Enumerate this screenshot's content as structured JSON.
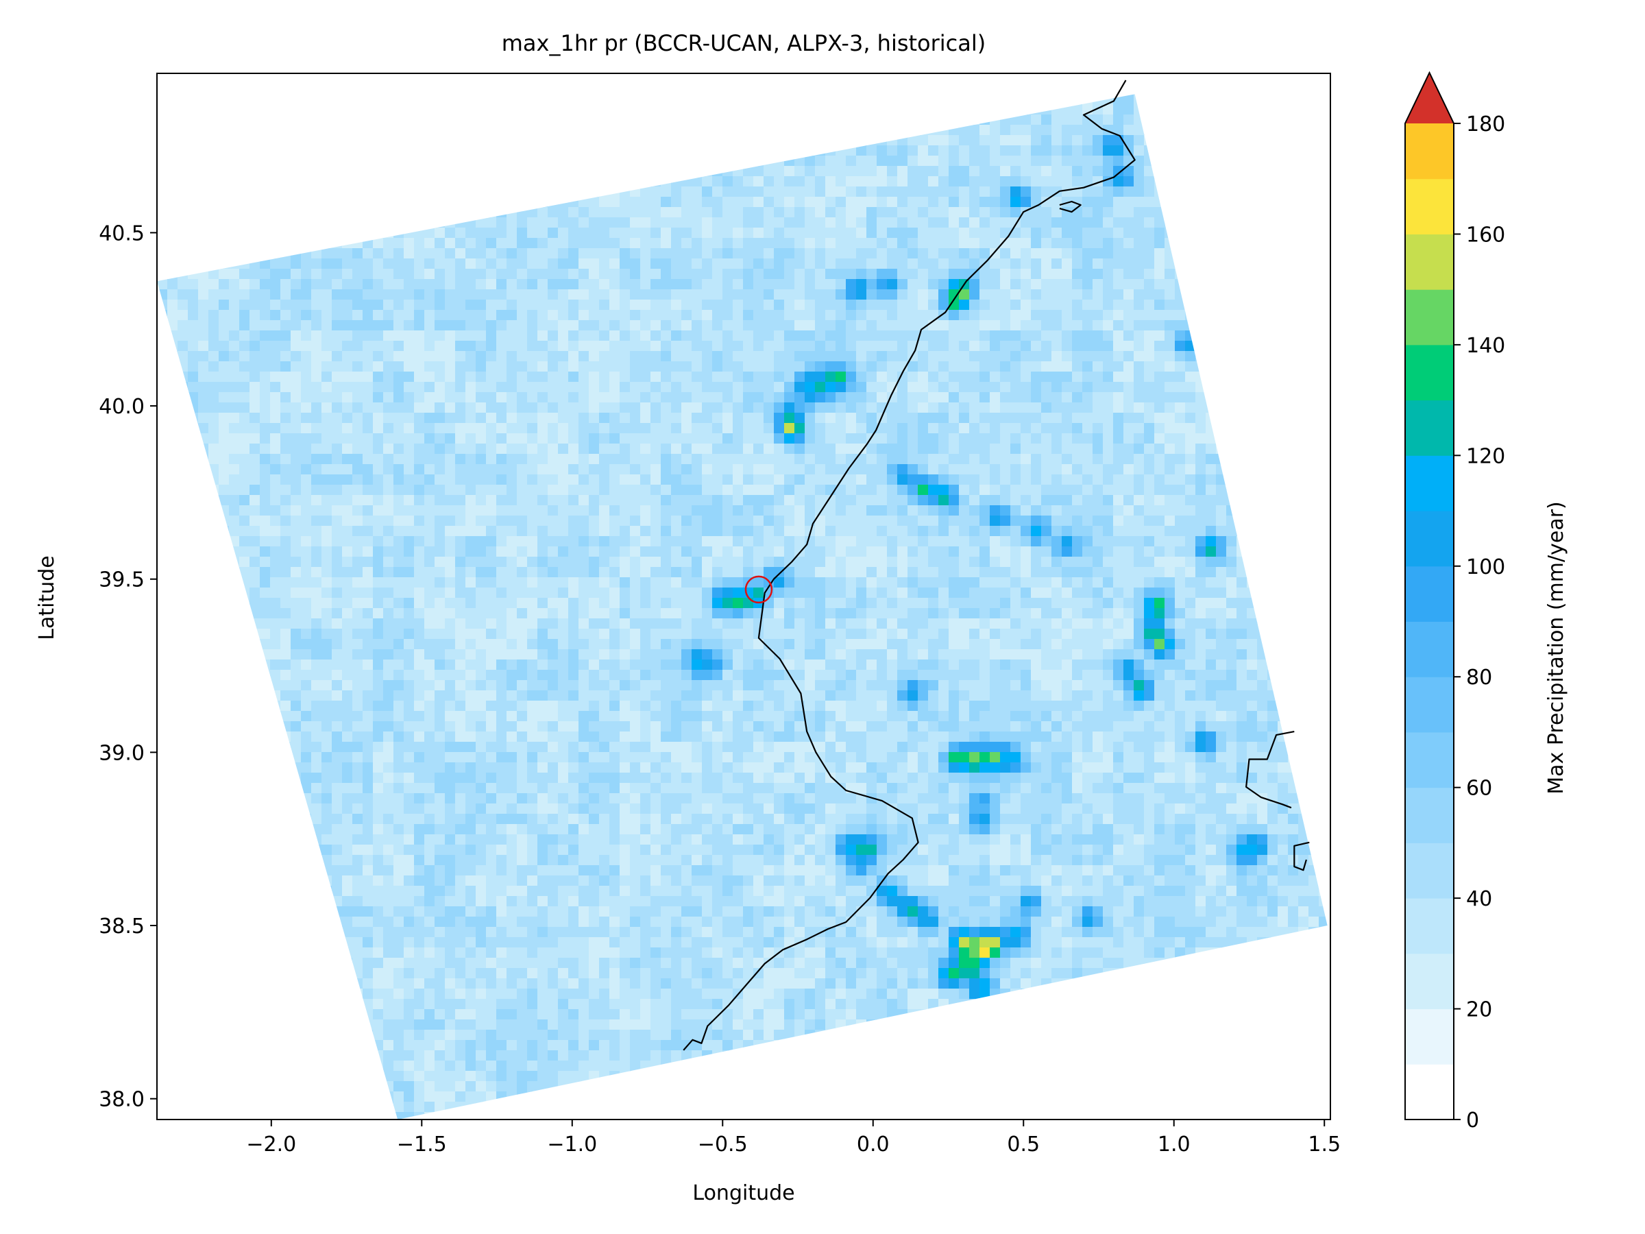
{
  "chart_data": {
    "type": "heatmap",
    "title": "max_1hr pr (BCCR-UCAN, ALPX-3, historical)",
    "xlabel": "Longitude",
    "ylabel": "Latitude",
    "xlim": [
      -2.38,
      1.52
    ],
    "ylim": [
      37.94,
      40.96
    ],
    "x_ticks": [
      -2.0,
      -1.5,
      -1.0,
      -0.5,
      0.0,
      0.5,
      1.0,
      1.5
    ],
    "x_tick_labels": [
      "−2.0",
      "−1.5",
      "−1.0",
      "−0.5",
      "0.0",
      "0.5",
      "1.0",
      "1.5"
    ],
    "y_ticks": [
      38.0,
      38.5,
      39.0,
      39.5,
      40.0,
      40.5
    ],
    "y_tick_labels": [
      "38.0",
      "38.5",
      "39.0",
      "39.5",
      "40.0",
      "40.5"
    ],
    "grid": false,
    "domain_corners_lonlat": [
      [
        -2.38,
        40.36
      ],
      [
        0.87,
        40.9
      ],
      [
        1.51,
        38.5
      ],
      [
        -1.58,
        37.94
      ]
    ],
    "background_value_range": [
      20,
      60
    ],
    "hotspots": [
      {
        "lon": 0.36,
        "lat": 38.43,
        "value": 180
      },
      {
        "lon": 0.3,
        "lat": 38.45,
        "value": 160
      },
      {
        "lon": 0.4,
        "lat": 38.45,
        "value": 158
      },
      {
        "lon": 0.32,
        "lat": 38.38,
        "value": 150
      },
      {
        "lon": 0.26,
        "lat": 38.36,
        "value": 140
      },
      {
        "lon": 0.36,
        "lat": 38.32,
        "value": 132
      },
      {
        "lon": 0.48,
        "lat": 38.47,
        "value": 120
      },
      {
        "lon": 0.05,
        "lat": 38.59,
        "value": 120
      },
      {
        "lon": 0.12,
        "lat": 38.55,
        "value": 135
      },
      {
        "lon": 0.18,
        "lat": 38.52,
        "value": 118
      },
      {
        "lon": 0.52,
        "lat": 38.56,
        "value": 112
      },
      {
        "lon": 0.72,
        "lat": 38.52,
        "value": 108
      },
      {
        "lon": -0.08,
        "lat": 38.73,
        "value": 125
      },
      {
        "lon": -0.02,
        "lat": 38.72,
        "value": 132
      },
      {
        "lon": -0.05,
        "lat": 38.68,
        "value": 110
      },
      {
        "lon": 0.28,
        "lat": 38.98,
        "value": 138
      },
      {
        "lon": 0.34,
        "lat": 38.98,
        "value": 150
      },
      {
        "lon": 0.4,
        "lat": 38.98,
        "value": 144
      },
      {
        "lon": 0.46,
        "lat": 38.98,
        "value": 118
      },
      {
        "lon": 0.36,
        "lat": 38.86,
        "value": 100
      },
      {
        "lon": 0.36,
        "lat": 38.8,
        "value": 110
      },
      {
        "lon": 0.94,
        "lat": 39.42,
        "value": 152
      },
      {
        "lon": 0.96,
        "lat": 39.31,
        "value": 145
      },
      {
        "lon": 0.93,
        "lat": 39.35,
        "value": 132
      },
      {
        "lon": 0.89,
        "lat": 39.18,
        "value": 135
      },
      {
        "lon": 0.85,
        "lat": 39.24,
        "value": 112
      },
      {
        "lon": 1.12,
        "lat": 39.59,
        "value": 130
      },
      {
        "lon": 1.1,
        "lat": 39.03,
        "value": 122
      },
      {
        "lon": 1.27,
        "lat": 38.73,
        "value": 130
      },
      {
        "lon": 1.23,
        "lat": 38.71,
        "value": 114
      },
      {
        "lon": -0.5,
        "lat": 39.44,
        "value": 128
      },
      {
        "lon": -0.44,
        "lat": 39.44,
        "value": 140
      },
      {
        "lon": -0.39,
        "lat": 39.45,
        "value": 130
      },
      {
        "lon": -0.32,
        "lat": 39.5,
        "value": 108
      },
      {
        "lon": -0.58,
        "lat": 39.26,
        "value": 120
      },
      {
        "lon": -0.54,
        "lat": 39.25,
        "value": 108
      },
      {
        "lon": 0.13,
        "lat": 39.17,
        "value": 110
      },
      {
        "lon": 0.17,
        "lat": 39.76,
        "value": 135
      },
      {
        "lon": 0.24,
        "lat": 39.74,
        "value": 130
      },
      {
        "lon": 0.1,
        "lat": 39.8,
        "value": 112
      },
      {
        "lon": 0.42,
        "lat": 39.68,
        "value": 120
      },
      {
        "lon": 0.54,
        "lat": 39.64,
        "value": 112
      },
      {
        "lon": 0.64,
        "lat": 39.6,
        "value": 110
      },
      {
        "lon": -0.27,
        "lat": 39.93,
        "value": 158
      },
      {
        "lon": -0.28,
        "lat": 39.97,
        "value": 130
      },
      {
        "lon": -0.12,
        "lat": 40.08,
        "value": 140
      },
      {
        "lon": -0.18,
        "lat": 40.06,
        "value": 130
      },
      {
        "lon": -0.22,
        "lat": 40.05,
        "value": 118
      },
      {
        "lon": 0.29,
        "lat": 40.33,
        "value": 155
      },
      {
        "lon": 0.27,
        "lat": 40.3,
        "value": 135
      },
      {
        "lon": -0.05,
        "lat": 40.34,
        "value": 118
      },
      {
        "lon": 0.05,
        "lat": 40.35,
        "value": 112
      },
      {
        "lon": 0.48,
        "lat": 40.6,
        "value": 122
      },
      {
        "lon": 0.8,
        "lat": 40.75,
        "value": 118
      },
      {
        "lon": 0.83,
        "lat": 40.66,
        "value": 112
      },
      {
        "lon": 1.04,
        "lat": 40.18,
        "value": 112
      }
    ],
    "coastline": [
      [
        0.84,
        40.94
      ],
      [
        0.8,
        40.88
      ],
      [
        0.7,
        40.84
      ],
      [
        0.76,
        40.8
      ],
      [
        0.82,
        40.78
      ],
      [
        0.87,
        40.71
      ],
      [
        0.8,
        40.66
      ],
      [
        0.7,
        40.63
      ],
      [
        0.62,
        40.62
      ],
      [
        0.55,
        40.58
      ],
      [
        0.5,
        40.56
      ],
      [
        0.45,
        40.49
      ],
      [
        0.38,
        40.42
      ],
      [
        0.31,
        40.36
      ],
      [
        0.24,
        40.27
      ],
      [
        0.16,
        40.22
      ],
      [
        0.14,
        40.16
      ],
      [
        0.1,
        40.1
      ],
      [
        0.06,
        40.03
      ],
      [
        0.04,
        39.99
      ],
      [
        0.01,
        39.93
      ],
      [
        -0.02,
        39.89
      ],
      [
        -0.08,
        39.82
      ],
      [
        -0.14,
        39.74
      ],
      [
        -0.2,
        39.66
      ],
      [
        -0.22,
        39.6
      ],
      [
        -0.27,
        39.55
      ],
      [
        -0.33,
        39.5
      ],
      [
        -0.36,
        39.46
      ],
      [
        -0.38,
        39.33
      ],
      [
        -0.31,
        39.27
      ],
      [
        -0.24,
        39.17
      ],
      [
        -0.22,
        39.06
      ],
      [
        -0.19,
        39.0
      ],
      [
        -0.14,
        38.93
      ],
      [
        -0.09,
        38.89
      ],
      [
        0.03,
        38.86
      ],
      [
        0.13,
        38.81
      ],
      [
        0.15,
        38.74
      ],
      [
        0.1,
        38.69
      ],
      [
        0.05,
        38.65
      ],
      [
        -0.01,
        38.58
      ],
      [
        -0.09,
        38.51
      ],
      [
        -0.15,
        38.49
      ],
      [
        -0.22,
        38.46
      ],
      [
        -0.3,
        38.43
      ],
      [
        -0.36,
        38.39
      ],
      [
        -0.42,
        38.33
      ],
      [
        -0.48,
        38.27
      ],
      [
        -0.55,
        38.21
      ],
      [
        -0.57,
        38.16
      ],
      [
        -0.6,
        38.17
      ],
      [
        -0.63,
        38.14
      ]
    ],
    "island_coast_1": [
      [
        1.4,
        39.06
      ],
      [
        1.34,
        39.05
      ],
      [
        1.31,
        38.98
      ],
      [
        1.25,
        38.98
      ],
      [
        1.24,
        38.9
      ],
      [
        1.29,
        38.87
      ],
      [
        1.36,
        38.85
      ],
      [
        1.39,
        38.84
      ]
    ],
    "island_coast_2": [
      [
        1.45,
        38.74
      ],
      [
        1.4,
        38.73
      ],
      [
        1.4,
        38.67
      ],
      [
        1.43,
        38.66
      ],
      [
        1.44,
        38.69
      ]
    ],
    "islet_coast": [
      [
        0.62,
        40.58
      ],
      [
        0.66,
        40.59
      ],
      [
        0.69,
        40.58
      ],
      [
        0.66,
        40.56
      ],
      [
        0.62,
        40.57
      ]
    ],
    "marker": {
      "lon": -0.38,
      "lat": 39.47,
      "color": "#dd1111"
    },
    "colorbar": {
      "label": "Max Precipitation (mm/year)",
      "levels": [
        0,
        10,
        20,
        30,
        40,
        50,
        60,
        70,
        80,
        90,
        100,
        110,
        120,
        130,
        140,
        150,
        160,
        170,
        180
      ],
      "colors": [
        "#ffffff",
        "#e8f6fd",
        "#d0eefa",
        "#bee7fb",
        "#aadefb",
        "#96d6fb",
        "#7fccfb",
        "#68c1fa",
        "#50b6f8",
        "#33a8f5",
        "#14a4ef",
        "#00aff8",
        "#00b8ac",
        "#00cc77",
        "#66d664",
        "#c6de4e",
        "#fce43b",
        "#fdc728",
        "#faa520",
        "#f57c20",
        "#e2432a",
        "#d3312a"
      ],
      "tick_values": [
        0,
        20,
        40,
        60,
        80,
        100,
        120,
        140,
        160,
        180
      ],
      "tick_labels": [
        "0",
        "20",
        "40",
        "60",
        "80",
        "100",
        "120",
        "140",
        "160",
        "180"
      ],
      "extend": "max",
      "extend_color": "#d3312a"
    }
  }
}
